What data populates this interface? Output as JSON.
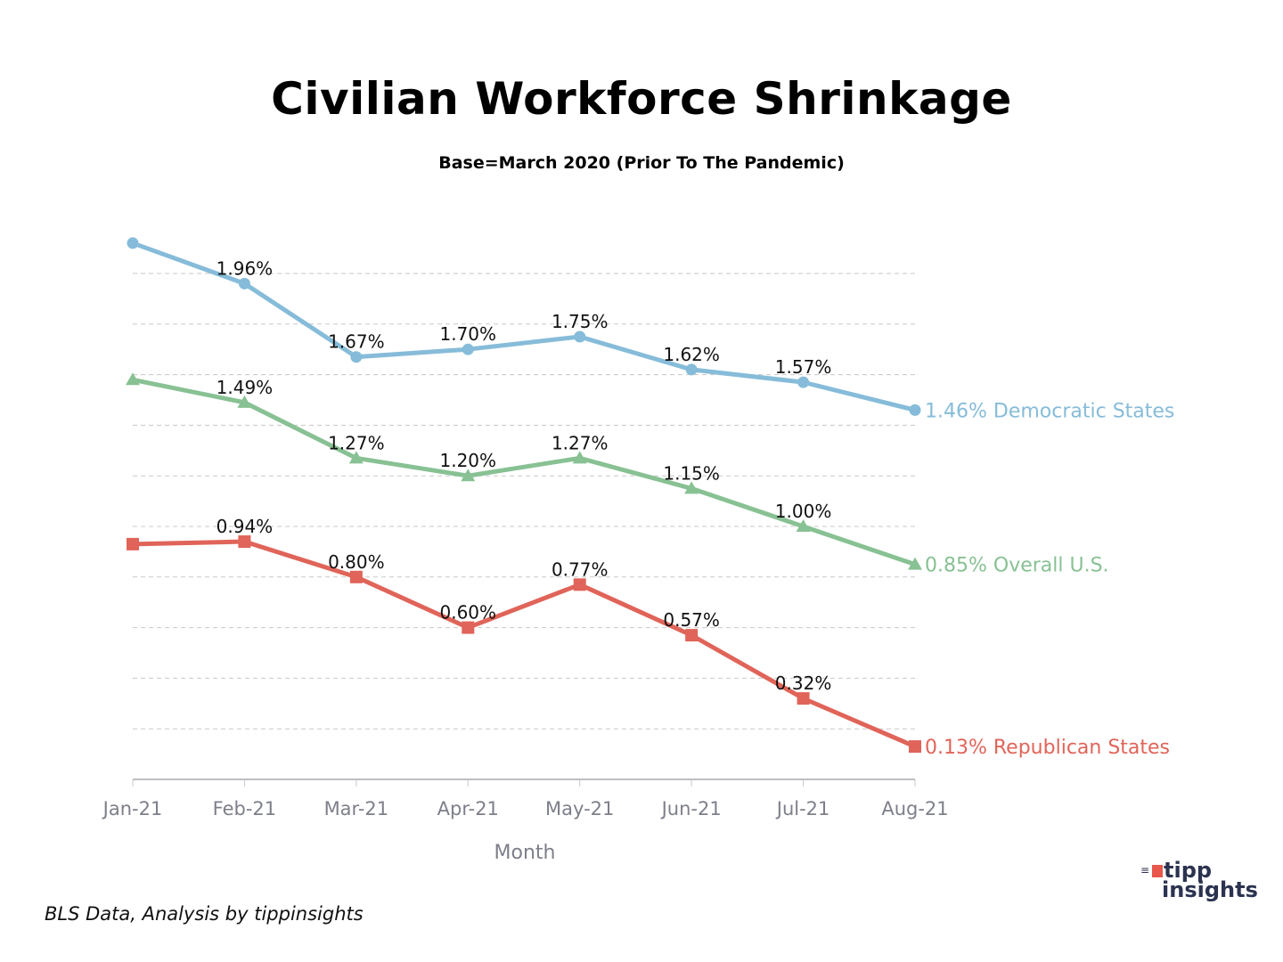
{
  "header": {
    "title": "Civilian Workforce Shrinkage",
    "subtitle": "Base=March 2020 (Prior To The Pandemic)"
  },
  "footer": {
    "source": "BLS Data, Analysis by tippinsights"
  },
  "logo": {
    "line1": "tipp",
    "line2": "insights"
  },
  "chart_data": {
    "type": "line",
    "title": "Civilian Workforce Shrinkage",
    "subtitle": "Base=March 2020 (Prior To The Pandemic)",
    "xlabel": "Month",
    "ylabel": "",
    "categories": [
      "Jan-21",
      "Feb-21",
      "Mar-21",
      "Apr-21",
      "May-21",
      "Jun-21",
      "Jul-21",
      "Aug-21"
    ],
    "ylim": [
      0,
      2.0
    ],
    "ygrid_step": 0.2,
    "grid": true,
    "y_tick_labels_visible": false,
    "series": [
      {
        "name": "Democratic States",
        "color": "#86bcd9",
        "marker": "circle",
        "values": [
          2.12,
          1.96,
          1.67,
          1.7,
          1.75,
          1.62,
          1.57,
          1.46
        ],
        "labels": [
          "",
          "1.96%",
          "1.67%",
          "1.70%",
          "1.75%",
          "1.62%",
          "1.57%",
          ""
        ],
        "end_label": "1.46% Democratic States"
      },
      {
        "name": "Overall U.S.",
        "color": "#88c193",
        "marker": "triangle",
        "values": [
          1.58,
          1.49,
          1.27,
          1.2,
          1.27,
          1.15,
          1.0,
          0.85
        ],
        "labels": [
          "",
          "1.49%",
          "1.27%",
          "1.20%",
          "1.27%",
          "1.15%",
          "1.00%",
          ""
        ],
        "end_label": "0.85% Overall U.S."
      },
      {
        "name": "Republican States",
        "color": "#e06459",
        "marker": "square",
        "values": [
          0.93,
          0.94,
          0.8,
          0.6,
          0.77,
          0.57,
          0.32,
          0.13
        ],
        "labels": [
          "",
          "0.94%",
          "0.80%",
          "0.60%",
          "0.77%",
          "0.57%",
          "0.32%",
          ""
        ],
        "end_label": "0.13% Republican States"
      }
    ]
  }
}
